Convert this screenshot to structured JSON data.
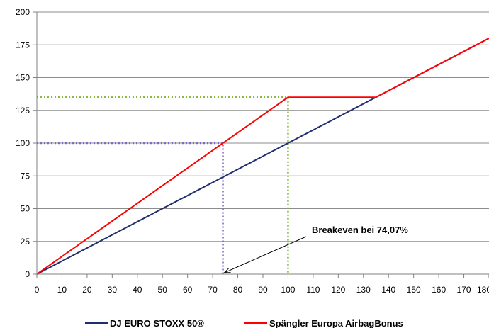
{
  "chart_data": {
    "type": "line",
    "title": "",
    "xlabel": "",
    "ylabel": "",
    "xlim": [
      0,
      180
    ],
    "ylim": [
      0,
      200
    ],
    "x_ticks": [
      "0",
      "10",
      "20",
      "30",
      "40",
      "50",
      "60",
      "70",
      "80",
      "90",
      "100",
      "110",
      "120",
      "130",
      "140",
      "150",
      "160",
      "170",
      "180"
    ],
    "y_ticks": [
      "0",
      "25",
      "50",
      "75",
      "100",
      "125",
      "150",
      "175",
      "200"
    ],
    "grid": "horizontal",
    "legend_position": "bottom",
    "series": [
      {
        "name": "DJ EURO STOXX 50®",
        "color": "#1f2f6e",
        "points": [
          [
            0,
            0
          ],
          [
            180,
            180
          ]
        ]
      },
      {
        "name": "Spängler Europa AirbagBonus",
        "color": "#ff0000",
        "points": [
          [
            0,
            0
          ],
          [
            100,
            135
          ],
          [
            135,
            135
          ],
          [
            180,
            180
          ]
        ]
      }
    ],
    "reference_lines": [
      {
        "color": "#8aba3c",
        "style": "dotted",
        "points": [
          [
            0,
            135
          ],
          [
            100,
            135
          ],
          [
            100,
            0
          ]
        ]
      },
      {
        "color": "#8066c8",
        "style": "dotted",
        "points": [
          [
            0,
            100
          ],
          [
            74.07,
            100
          ],
          [
            74.07,
            0
          ]
        ]
      }
    ],
    "annotation": {
      "text": "Breakeven bei 74,07%",
      "arrow_to": [
        74.07,
        0
      ]
    }
  }
}
